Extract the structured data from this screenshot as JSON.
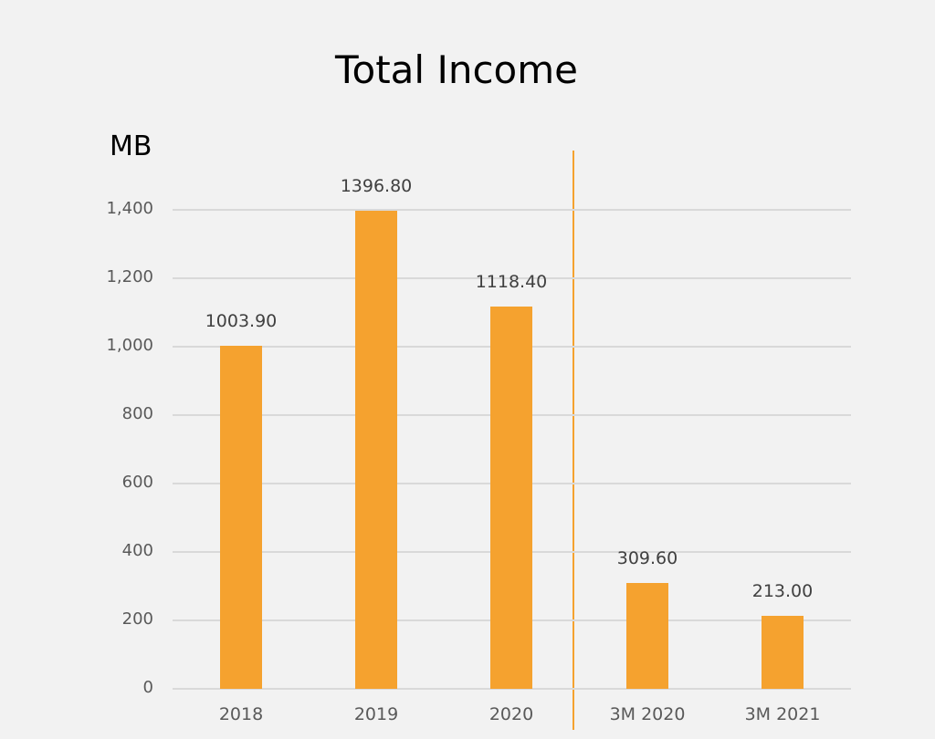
{
  "chart_data": {
    "type": "bar",
    "title": "Total Income",
    "ylabel": "MB",
    "xlabel": "",
    "categories": [
      "2018",
      "2019",
      "2020",
      "3M 2020",
      "3M 2021"
    ],
    "values": [
      1003.9,
      1396.8,
      1118.4,
      309.6,
      213.0
    ],
    "value_labels": [
      "1003.90",
      "1396.80",
      "1118.40",
      "309.60",
      "213.00"
    ],
    "ylim": [
      0,
      1400
    ],
    "yticks": [
      "0",
      "200",
      "400",
      "600",
      "800",
      "1,000",
      "1,200",
      "1,400"
    ],
    "grid": true,
    "legend": null,
    "bar_color": "#f5a22f",
    "divider_after_category": "2020"
  }
}
